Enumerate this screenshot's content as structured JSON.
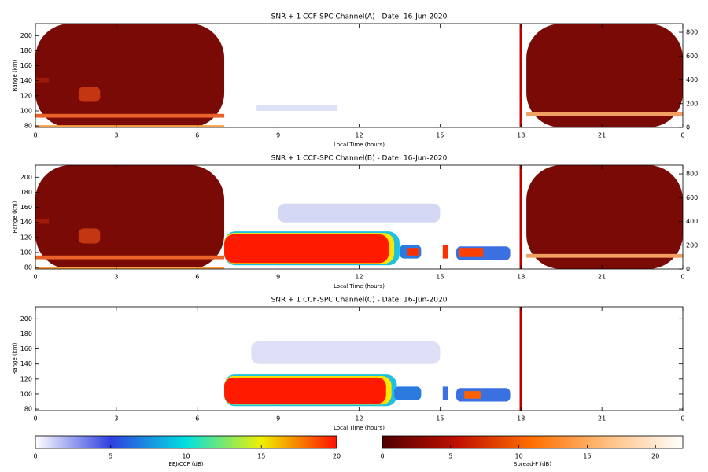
{
  "chart_data": [
    {
      "type": "heatmap",
      "title": "SNR + 1 CCF-SPC Channel(A) - Date: 16-Jun-2020",
      "xlabel": "Local Time (hours)",
      "ylabel": "Range (km)",
      "xlim": [
        0,
        24
      ],
      "xticks": [
        0,
        3,
        6,
        9,
        12,
        15,
        18,
        21,
        {
          "value": 24,
          "label": "0"
        }
      ],
      "ylim": [
        78,
        216
      ],
      "yticks": [
        80,
        100,
        120,
        140,
        160,
        180,
        200
      ],
      "y2lim": [
        0,
        873
      ],
      "y2ticks": [
        0,
        200,
        400,
        600,
        800
      ],
      "blocks": [
        {
          "x": [
            0,
            7
          ],
          "y": [
            78,
            216
          ],
          "color": "#7a0a05"
        },
        {
          "x": [
            0,
            7
          ],
          "y": [
            91,
            96
          ],
          "color": "#e8622a"
        },
        {
          "x": [
            0,
            7
          ],
          "y": [
            78,
            81
          ],
          "color": "#ffa040"
        },
        {
          "x": [
            1.6,
            2.4
          ],
          "y": [
            112,
            132
          ],
          "color": "#c43612"
        },
        {
          "x": [
            0,
            0.5
          ],
          "y": [
            138,
            144
          ],
          "color": "#a01a08"
        },
        {
          "x": [
            8.2,
            11.2
          ],
          "y": [
            100,
            108
          ],
          "color": "#dde0f6"
        },
        {
          "x": [
            17.95,
            18.05
          ],
          "y": [
            78,
            216
          ],
          "color": "#c00000"
        },
        {
          "x": [
            18.2,
            24
          ],
          "y": [
            78,
            216
          ],
          "color": "#7a0a05"
        },
        {
          "x": [
            18.2,
            24
          ],
          "y": [
            93,
            98
          ],
          "color": "#f0a060"
        }
      ]
    },
    {
      "type": "heatmap",
      "title": "SNR + 1 CCF-SPC Channel(B) - Date: 16-Jun-2020",
      "xlabel": "Local Time (hours)",
      "ylabel": "Range (km)",
      "xlim": [
        0,
        24
      ],
      "xticks": [
        0,
        3,
        6,
        9,
        12,
        15,
        18,
        21,
        {
          "value": 24,
          "label": "0"
        }
      ],
      "ylim": [
        78,
        216
      ],
      "yticks": [
        80,
        100,
        120,
        140,
        160,
        180,
        200
      ],
      "y2lim": [
        0,
        873
      ],
      "y2ticks": [
        0,
        200,
        400,
        600,
        800
      ],
      "blocks": [
        {
          "x": [
            0,
            7
          ],
          "y": [
            78,
            216
          ],
          "color": "#7a0a05"
        },
        {
          "x": [
            0,
            7
          ],
          "y": [
            91,
            96
          ],
          "color": "#e8622a"
        },
        {
          "x": [
            0,
            7
          ],
          "y": [
            78,
            81
          ],
          "color": "#ffa040"
        },
        {
          "x": [
            1.6,
            2.4
          ],
          "y": [
            112,
            132
          ],
          "color": "#c43612"
        },
        {
          "x": [
            0,
            0.5
          ],
          "y": [
            138,
            144
          ],
          "color": "#a01a08"
        },
        {
          "x": [
            9,
            15
          ],
          "y": [
            140,
            165
          ],
          "color": "#d4d8f4"
        },
        {
          "x": [
            7,
            13.5
          ],
          "y": [
            83,
            128
          ],
          "color": "#20c0e0"
        },
        {
          "x": [
            7,
            13.3
          ],
          "y": [
            85,
            126
          ],
          "color": "#ffe600"
        },
        {
          "x": [
            7,
            13.1
          ],
          "y": [
            86,
            124
          ],
          "color": "#ff1a00"
        },
        {
          "x": [
            13.5,
            14.3
          ],
          "y": [
            92,
            110
          ],
          "color": "#2a7ae0"
        },
        {
          "x": [
            13.8,
            14.2
          ],
          "y": [
            96,
            106
          ],
          "color": "#ff3000"
        },
        {
          "x": [
            15.1,
            15.3
          ],
          "y": [
            92,
            110
          ],
          "color": "#ff3000"
        },
        {
          "x": [
            15.6,
            17.6
          ],
          "y": [
            90,
            108
          ],
          "color": "#3a70e0"
        },
        {
          "x": [
            15.7,
            16.6
          ],
          "y": [
            94,
            106
          ],
          "color": "#ff4000"
        },
        {
          "x": [
            17.95,
            18.05
          ],
          "y": [
            78,
            216
          ],
          "color": "#c00000"
        },
        {
          "x": [
            18.2,
            24
          ],
          "y": [
            78,
            216
          ],
          "color": "#7a0a05"
        },
        {
          "x": [
            18.2,
            24
          ],
          "y": [
            93,
            98
          ],
          "color": "#f0a060"
        }
      ]
    },
    {
      "type": "heatmap",
      "title": "SNR + 1 CCF-SPC Channel(C) - Date: 16-Jun-2020",
      "xlabel": "Local Time (hours)",
      "ylabel": "Range (km)",
      "xlim": [
        0,
        24
      ],
      "xticks": [
        0,
        3,
        6,
        9,
        12,
        15,
        18,
        21,
        {
          "value": 24,
          "label": "0"
        }
      ],
      "ylim": [
        78,
        216
      ],
      "yticks": [
        80,
        100,
        120,
        140,
        160,
        180,
        200
      ],
      "blocks": [
        {
          "x": [
            8,
            15
          ],
          "y": [
            140,
            170
          ],
          "color": "#dde0f6"
        },
        {
          "x": [
            7,
            13.4
          ],
          "y": [
            84,
            126
          ],
          "color": "#20c0e0"
        },
        {
          "x": [
            7,
            13.2
          ],
          "y": [
            86,
            124
          ],
          "color": "#ffe600"
        },
        {
          "x": [
            7,
            13
          ],
          "y": [
            87,
            122
          ],
          "color": "#ff1a00"
        },
        {
          "x": [
            13.3,
            14.3
          ],
          "y": [
            92,
            110
          ],
          "color": "#2a7ae0"
        },
        {
          "x": [
            15.1,
            15.3
          ],
          "y": [
            92,
            110
          ],
          "color": "#3a70e0"
        },
        {
          "x": [
            15.6,
            17.6
          ],
          "y": [
            90,
            108
          ],
          "color": "#3a70e0"
        },
        {
          "x": [
            15.9,
            16.5
          ],
          "y": [
            94,
            104
          ],
          "color": "#ff6000"
        },
        {
          "x": [
            17.95,
            18.05
          ],
          "y": [
            78,
            216
          ],
          "color": "#c00000"
        }
      ]
    },
    {
      "type": "colorbar",
      "label": "EEJ/CCF (dB)",
      "xlim": [
        0,
        20
      ],
      "xticks": [
        0,
        5,
        10,
        15,
        20
      ],
      "colors": [
        "#ffffff",
        "#3040e0",
        "#00e0e0",
        "#f0f000",
        "#ff1000"
      ]
    },
    {
      "type": "colorbar",
      "label": "Spread-F (dB)",
      "xlim": [
        0,
        22
      ],
      "xticks": [
        0,
        5,
        10,
        15,
        20
      ],
      "colors": [
        "#500000",
        "#c01000",
        "#ff7000",
        "#ffc080",
        "#ffffff"
      ]
    }
  ]
}
